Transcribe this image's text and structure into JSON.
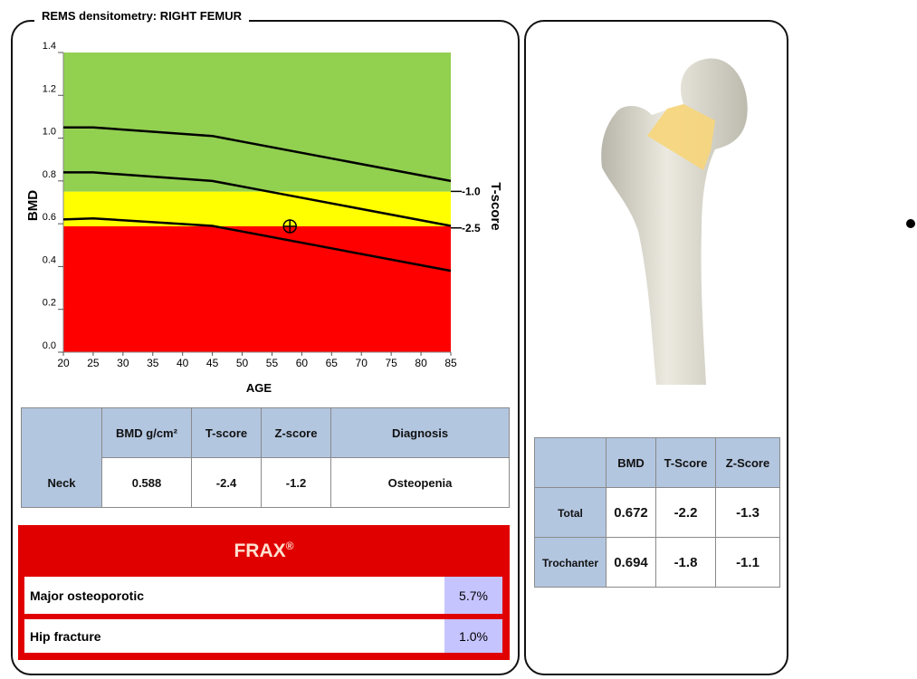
{
  "panel_title": "REMS densitometry: RIGHT FEMUR",
  "chart_data": {
    "type": "line",
    "x_label": "AGE",
    "y_label": "BMD",
    "y2_label": "T-score",
    "x": [
      20,
      25,
      45,
      85
    ],
    "series": [
      {
        "color": "#000000",
        "values": [
          1.05,
          1.05,
          1.01,
          0.8
        ]
      },
      {
        "color": "#000000",
        "values": [
          0.84,
          0.84,
          0.8,
          0.59
        ]
      },
      {
        "color": "#000000",
        "values": [
          0.62,
          0.625,
          0.59,
          0.38
        ]
      }
    ],
    "bands": [
      {
        "from": 0.75,
        "to": 1.4,
        "color": "#92d050"
      },
      {
        "from": 0.588,
        "to": 0.75,
        "color": "#ffff00"
      },
      {
        "from": 0,
        "to": 0.588,
        "color": "#ff0000"
      }
    ],
    "point": {
      "x": 58,
      "y": 0.588,
      "color": "#000000"
    },
    "xlim": [
      20,
      85
    ],
    "xticks": [
      20,
      25,
      30,
      35,
      40,
      45,
      50,
      55,
      60,
      65,
      70,
      75,
      80,
      85
    ],
    "ylim": [
      0,
      1.4
    ],
    "yticks": [
      {
        "value": 0,
        "label": "0.0"
      },
      0.2,
      0.4,
      0.6,
      0.8,
      {
        "value": 1,
        "label": "1.0"
      },
      1.2,
      1.4
    ],
    "y2lim": [
      -7.6,
      4.7
    ],
    "y2ticks": [
      {
        "value": -1,
        "label": "-1.0"
      },
      -2.5
    ]
  },
  "neck_table": {
    "headers": [
      "BMD g/cm²",
      "T-score",
      "Z-score",
      "Diagnosis"
    ],
    "rows": [
      [
        "Neck",
        "0.588",
        "-2.4",
        "-1.2",
        "Osteopenia"
      ]
    ]
  },
  "frax": {
    "title": "FRAX",
    "mark": "®",
    "rows": [
      [
        "Major osteoporotic",
        "5.7%"
      ],
      [
        "Hip fracture",
        "1.0%"
      ]
    ]
  },
  "hip_table": {
    "headers": [
      "BMD",
      "T-Score",
      "Z-Score"
    ],
    "rows": [
      [
        "Total",
        "0.672",
        "-2.2",
        "-1.3"
      ],
      [
        "Trochanter",
        "0.694",
        "-1.8",
        "-1.1"
      ]
    ]
  }
}
